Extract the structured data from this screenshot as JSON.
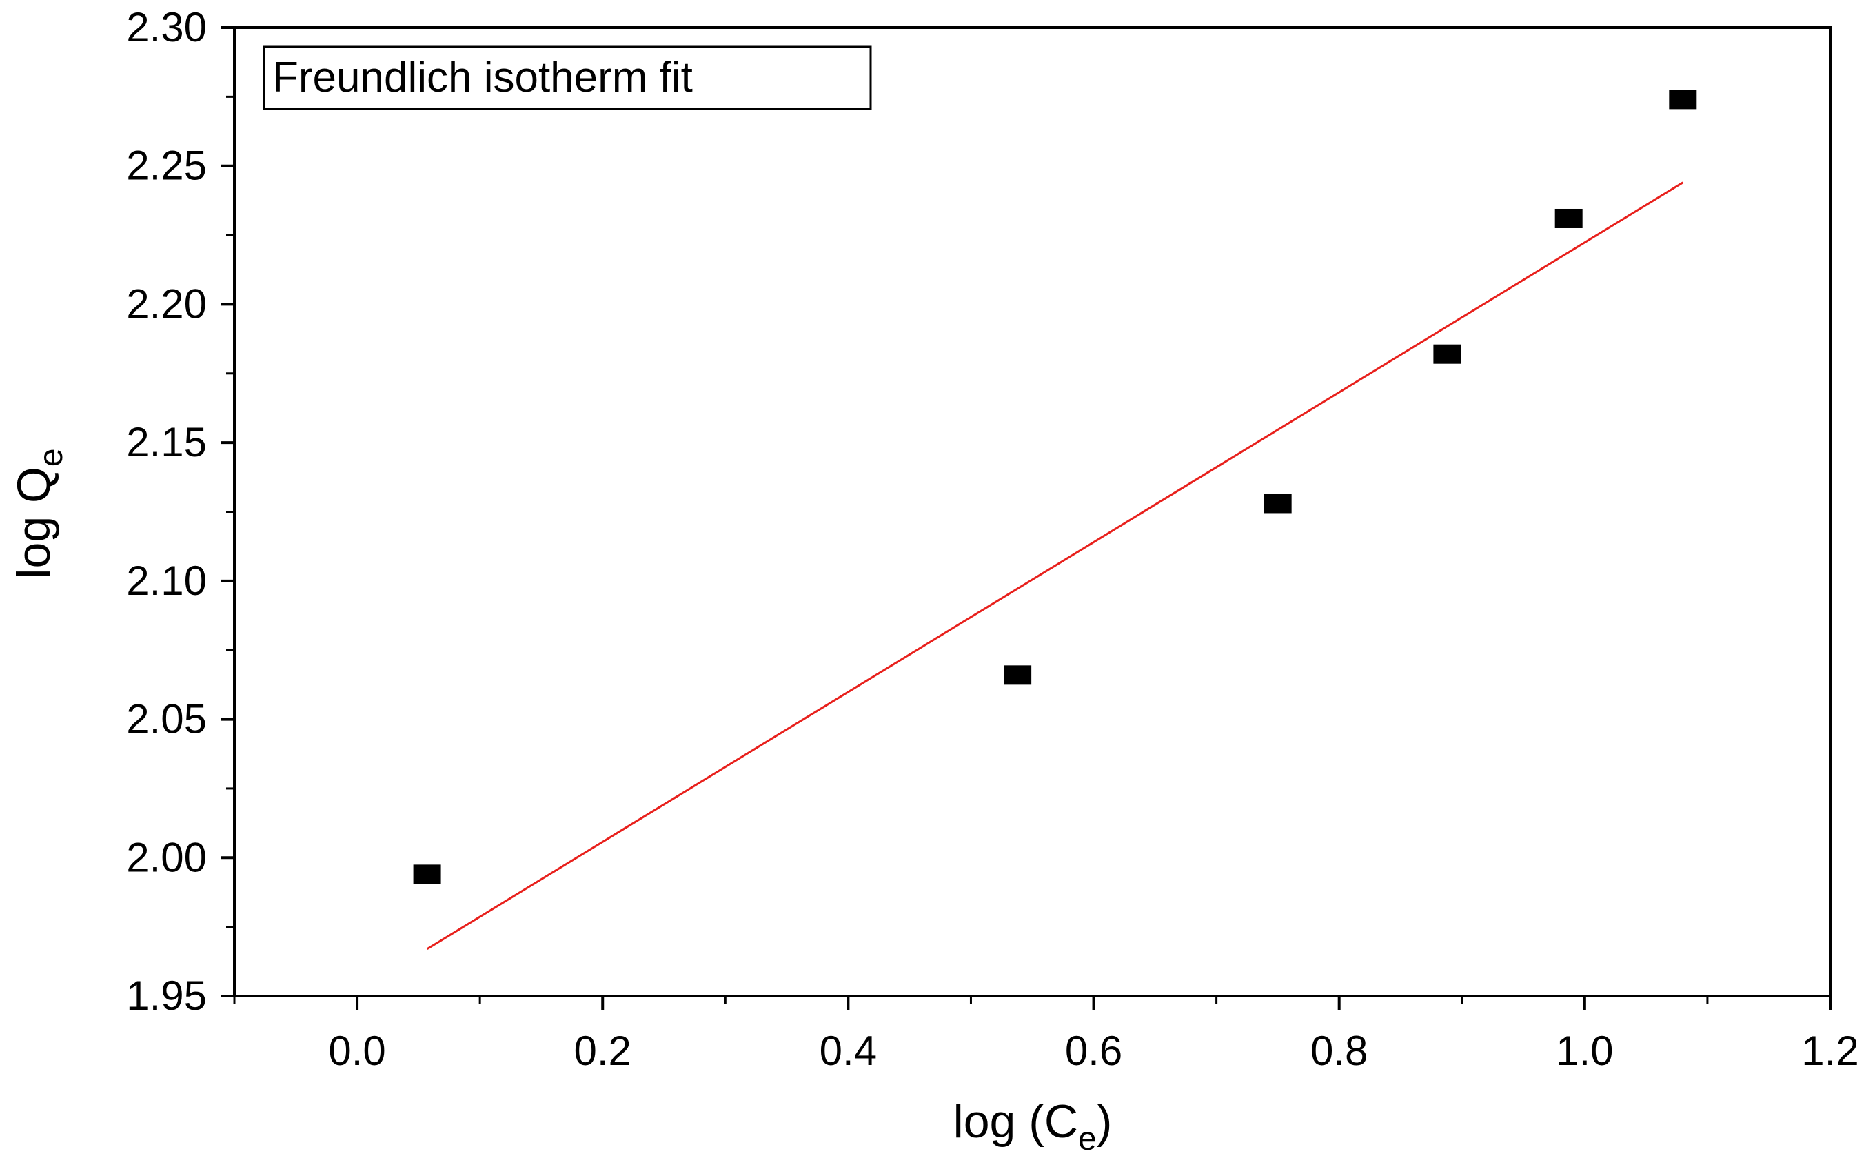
{
  "chart_data": {
    "type": "scatter",
    "title": "",
    "legend_text": "Freundlich isotherm fit",
    "legend_placement": "top-left",
    "xlabel_main": "log (C",
    "xlabel_sub": "e",
    "xlabel_close": ")",
    "ylabel_main": "log Q",
    "ylabel_sub": "e",
    "xlim": [
      -0.1,
      1.2
    ],
    "ylim": [
      1.95,
      2.3
    ],
    "xticks": [
      0.0,
      0.2,
      0.4,
      0.6,
      0.8,
      1.0,
      1.2
    ],
    "xtick_labels": [
      "0.0",
      "0.2",
      "0.4",
      "0.6",
      "0.8",
      "1.0",
      "1.2"
    ],
    "yticks": [
      1.95,
      2.0,
      2.05,
      2.1,
      2.15,
      2.2,
      2.25,
      2.3
    ],
    "ytick_labels": [
      "1.95",
      "2.00",
      "2.05",
      "2.10",
      "2.15",
      "2.20",
      "2.25",
      "2.30"
    ],
    "grid": false,
    "series": [
      {
        "kind": "points",
        "marker": "square",
        "color": "#000000",
        "x": [
          0.057,
          0.538,
          0.75,
          0.888,
          0.987,
          1.08
        ],
        "y": [
          1.994,
          2.066,
          2.128,
          2.182,
          2.231,
          2.274
        ]
      },
      {
        "kind": "fit-line",
        "color": "#e8201c",
        "x": [
          0.057,
          1.08
        ],
        "y": [
          1.967,
          2.244
        ]
      }
    ]
  }
}
